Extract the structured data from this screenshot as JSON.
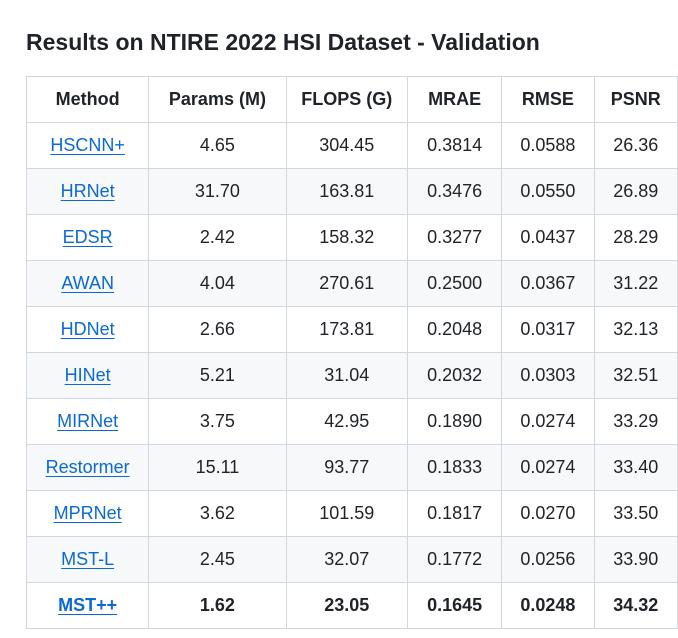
{
  "page": {
    "title": "Results on NTIRE 2022 HSI Dataset - Validation"
  },
  "table": {
    "headers": [
      "Method",
      "Params (M)",
      "FLOPS (G)",
      "MRAE",
      "RMSE",
      "PSNR"
    ],
    "rows": [
      {
        "method": "HSCNN+",
        "params": "4.65",
        "flops": "304.45",
        "mrae": "0.3814",
        "rmse": "0.0588",
        "psnr": "26.36"
      },
      {
        "method": "HRNet",
        "params": "31.70",
        "flops": "163.81",
        "mrae": "0.3476",
        "rmse": "0.0550",
        "psnr": "26.89"
      },
      {
        "method": "EDSR",
        "params": "2.42",
        "flops": "158.32",
        "mrae": "0.3277",
        "rmse": "0.0437",
        "psnr": "28.29"
      },
      {
        "method": "AWAN",
        "params": "4.04",
        "flops": "270.61",
        "mrae": "0.2500",
        "rmse": "0.0367",
        "psnr": "31.22"
      },
      {
        "method": "HDNet",
        "params": "2.66",
        "flops": "173.81",
        "mrae": "0.2048",
        "rmse": "0.0317",
        "psnr": "32.13"
      },
      {
        "method": "HINet",
        "params": "5.21",
        "flops": "31.04",
        "mrae": "0.2032",
        "rmse": "0.0303",
        "psnr": "32.51"
      },
      {
        "method": "MIRNet",
        "params": "3.75",
        "flops": "42.95",
        "mrae": "0.1890",
        "rmse": "0.0274",
        "psnr": "33.29"
      },
      {
        "method": "Restormer",
        "params": "15.11",
        "flops": "93.77",
        "mrae": "0.1833",
        "rmse": "0.0274",
        "psnr": "33.40"
      },
      {
        "method": "MPRNet",
        "params": "3.62",
        "flops": "101.59",
        "mrae": "0.1817",
        "rmse": "0.0270",
        "psnr": "33.50"
      },
      {
        "method": "MST-L",
        "params": "2.45",
        "flops": "32.07",
        "mrae": "0.1772",
        "rmse": "0.0256",
        "psnr": "33.90"
      },
      {
        "method": "MST++",
        "params": "1.62",
        "flops": "23.05",
        "mrae": "0.1645",
        "rmse": "0.0248",
        "psnr": "34.32",
        "best": true
      }
    ]
  },
  "colors": {
    "link": "#0969da",
    "border": "#d0d7de",
    "stripe": "#f6f8fa",
    "text": "#1f2328"
  }
}
